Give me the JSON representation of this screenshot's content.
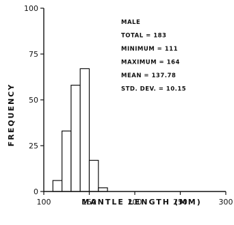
{
  "chart_data": {
    "type": "bar",
    "title": "",
    "xlabel": "MANTLE LENGTH (MM)",
    "ylabel": "FREQUENCY",
    "xlim": [
      100,
      300
    ],
    "ylim": [
      0,
      100
    ],
    "x_ticks": [
      100,
      150,
      200,
      250,
      300
    ],
    "y_ticks": [
      0,
      25,
      50,
      75,
      100
    ],
    "bin_width": 10,
    "bins": [
      {
        "start": 110,
        "end": 120,
        "value": 6
      },
      {
        "start": 120,
        "end": 130,
        "value": 33
      },
      {
        "start": 130,
        "end": 140,
        "value": 58
      },
      {
        "start": 140,
        "end": 150,
        "value": 67
      },
      {
        "start": 150,
        "end": 160,
        "value": 17
      },
      {
        "start": 160,
        "end": 170,
        "value": 2
      }
    ],
    "annotation": [
      "MALE",
      "TOTAL = 183",
      "MINIMUM = 111",
      "MAXIMUM = 164",
      "MEAN = 137.78",
      "STD. DEV. = 10.15"
    ],
    "grid": false
  }
}
